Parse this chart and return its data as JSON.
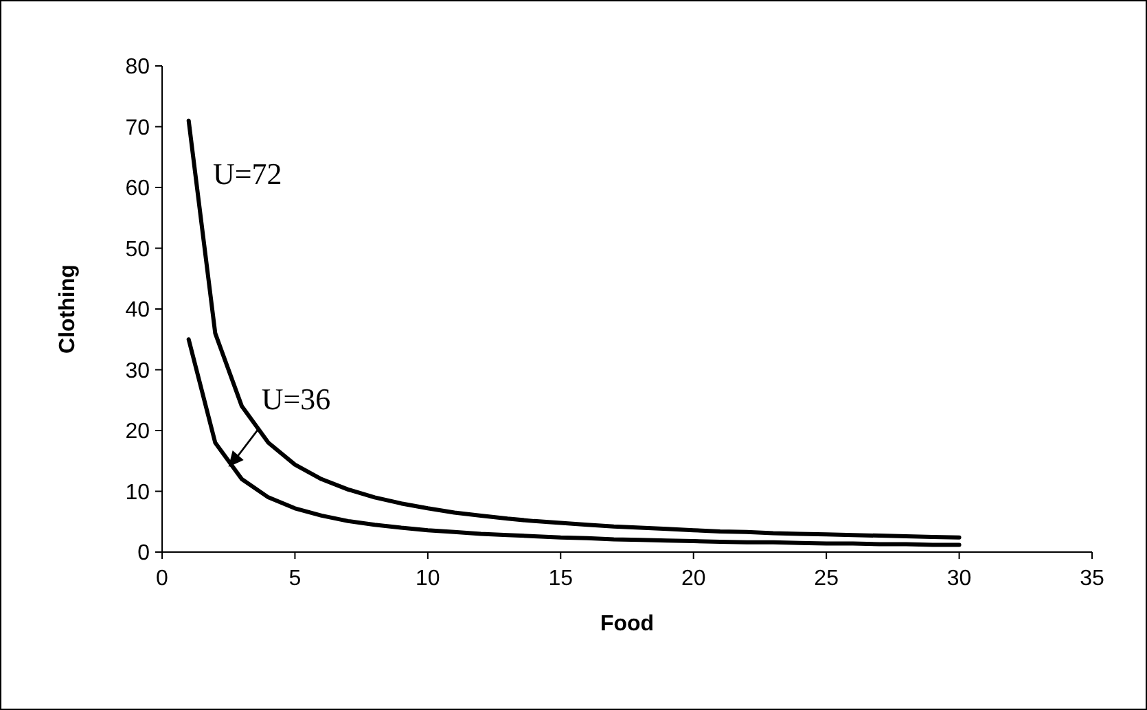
{
  "chart_data": {
    "type": "line",
    "xlabel": "Food",
    "ylabel": "Clothing",
    "x": [
      1,
      2,
      3,
      4,
      5,
      6,
      7,
      8,
      9,
      10,
      11,
      12,
      13,
      14,
      15,
      16,
      17,
      18,
      19,
      20,
      21,
      22,
      23,
      24,
      25,
      26,
      27,
      28,
      29,
      30
    ],
    "series": [
      {
        "color": "#000000",
        "values": [
          71,
          36,
          24,
          18,
          14.4,
          12,
          10.3,
          9,
          8,
          7.2,
          6.5,
          6,
          5.5,
          5.1,
          4.8,
          4.5,
          4.2,
          4,
          3.8,
          3.6,
          3.4,
          3.3,
          3.1,
          3,
          2.9,
          2.8,
          2.7,
          2.6,
          2.5,
          2.4
        ]
      },
      {
        "color": "#000000",
        "values": [
          35,
          18,
          12,
          9,
          7.2,
          6,
          5.1,
          4.5,
          4,
          3.6,
          3.3,
          3,
          2.8,
          2.6,
          2.4,
          2.3,
          2.1,
          2,
          1.9,
          1.8,
          1.7,
          1.6,
          1.6,
          1.5,
          1.4,
          1.4,
          1.3,
          1.3,
          1.2,
          1.2
        ]
      }
    ],
    "xlim": [
      0,
      35
    ],
    "xticks": [
      0,
      5,
      10,
      15,
      20,
      25,
      30,
      35
    ],
    "ylim": [
      0,
      80
    ],
    "yticks": [
      0,
      10,
      20,
      30,
      40,
      50,
      60,
      70,
      80
    ],
    "grid": false,
    "marker": "none",
    "line_style": "solid",
    "annotations": [
      "U=72",
      {
        "text": "U=36",
        "x": 2.5,
        "y": 14
      }
    ]
  }
}
